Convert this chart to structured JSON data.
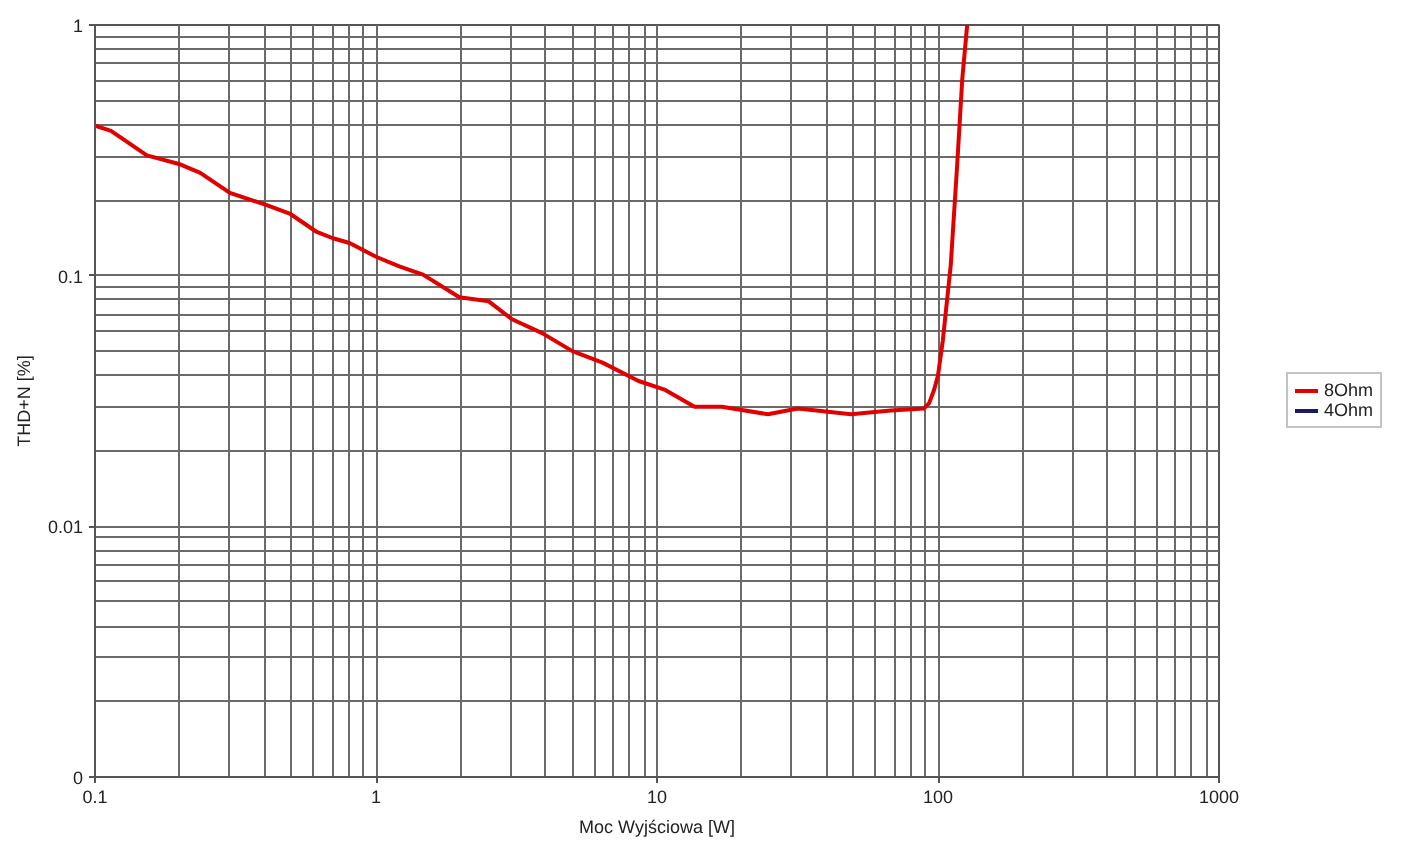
{
  "chart_data": {
    "type": "line",
    "xlabel": "Moc Wyjściowa [W]",
    "ylabel": "THD+N [%]",
    "x": [
      0.1,
      0.114,
      0.153,
      0.199,
      0.237,
      0.302,
      0.404,
      0.493,
      0.612,
      0.703,
      0.805,
      1.0,
      1.21,
      1.47,
      1.98,
      2.52,
      3.05,
      3.9,
      5.0,
      6.4,
      8.6,
      10.7,
      13.6,
      17,
      24.8,
      31.7,
      49,
      68,
      89,
      93,
      96.8,
      100,
      104,
      111,
      117,
      122,
      127
    ],
    "series": [
      {
        "name": "8Ohm",
        "color": "#e00000",
        "values": [
          0.397,
          0.378,
          0.302,
          0.279,
          0.257,
          0.214,
          0.192,
          0.177,
          0.15,
          0.141,
          0.135,
          0.119,
          0.109,
          0.101,
          0.082,
          0.079,
          0.067,
          0.059,
          0.05,
          0.045,
          0.038,
          0.035,
          0.03,
          0.03,
          0.028,
          0.0295,
          0.028,
          0.029,
          0.0295,
          0.031,
          0.035,
          0.04,
          0.055,
          0.11,
          0.276,
          0.61,
          1.0
        ]
      },
      {
        "name": "4Ohm",
        "color": "#1a1a5e",
        "values": [
          null,
          null,
          null,
          null,
          null,
          null,
          null,
          null,
          null,
          null,
          null,
          null,
          null,
          null,
          null,
          null,
          null,
          null,
          null,
          null,
          null,
          null,
          null,
          null,
          null,
          null,
          null,
          null,
          null,
          null,
          null,
          null,
          null,
          null,
          null,
          null,
          null
        ]
      }
    ],
    "xlim": [
      0.1,
      1000
    ],
    "ylim": [
      0.001,
      1
    ],
    "xticks": [
      0.1,
      1,
      10,
      100,
      1000
    ],
    "yticks": [
      {
        "value": 0.001,
        "label": "0"
      },
      0.01,
      0.1,
      1
    ],
    "log": "xy",
    "grid": true,
    "legend": "right",
    "marker": "none",
    "line_style": "solid"
  }
}
